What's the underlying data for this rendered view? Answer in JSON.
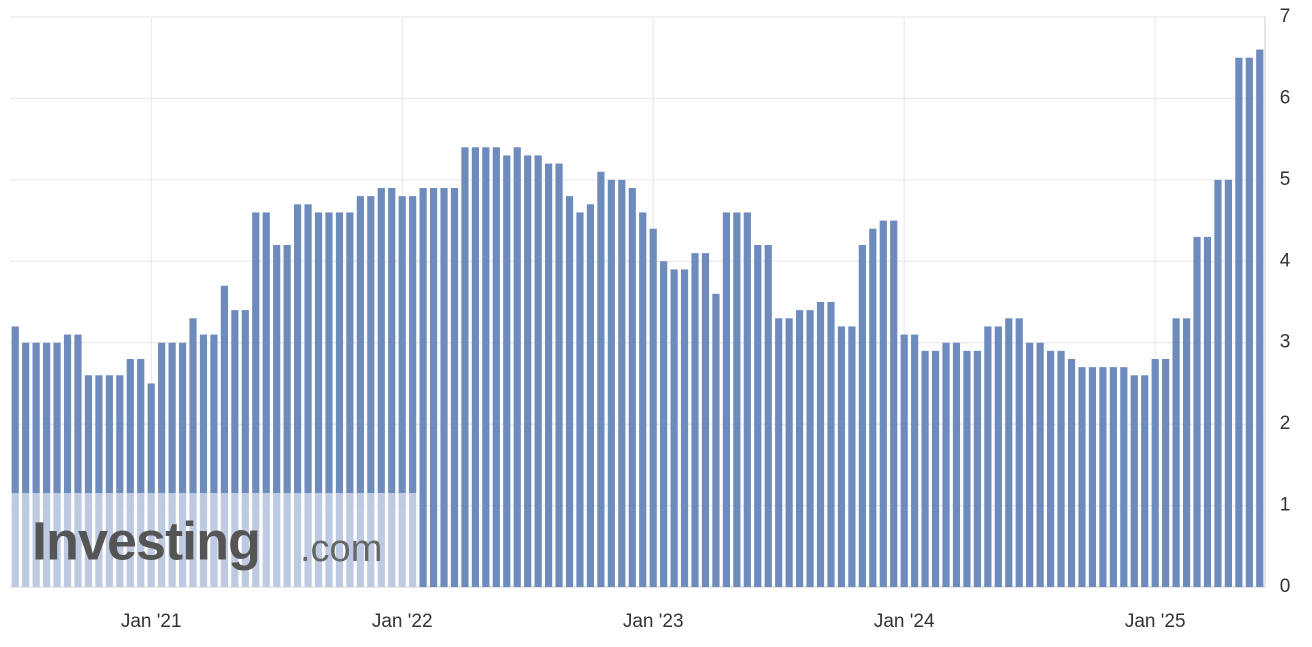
{
  "chart_data": {
    "type": "bar",
    "categories": [
      null,
      null,
      null,
      null,
      null,
      null,
      null,
      null,
      null,
      null,
      null,
      null,
      null,
      "Jan '21",
      null,
      null,
      null,
      null,
      null,
      null,
      null,
      null,
      null,
      null,
      null,
      null,
      null,
      null,
      null,
      null,
      null,
      null,
      null,
      null,
      null,
      null,
      null,
      "Jan '22",
      null,
      null,
      null,
      null,
      null,
      null,
      null,
      null,
      null,
      null,
      null,
      null,
      null,
      null,
      null,
      null,
      null,
      null,
      null,
      null,
      null,
      null,
      null,
      "Jan '23",
      null,
      null,
      null,
      null,
      null,
      null,
      null,
      null,
      null,
      null,
      null,
      null,
      null,
      null,
      null,
      null,
      null,
      null,
      null,
      null,
      null,
      null,
      null,
      "Jan '24",
      null,
      null,
      null,
      null,
      null,
      null,
      null,
      null,
      null,
      null,
      null,
      null,
      null,
      null,
      null,
      null,
      null,
      null,
      null,
      null,
      null,
      null,
      null,
      "Jan '25",
      null,
      null,
      null,
      null,
      null,
      null,
      null,
      null,
      null,
      null
    ],
    "values": [
      3.2,
      3.0,
      3.0,
      3.0,
      3.0,
      3.1,
      3.1,
      2.6,
      2.6,
      2.6,
      2.6,
      2.8,
      2.8,
      2.5,
      3.0,
      3.0,
      3.0,
      3.3,
      3.1,
      3.1,
      3.7,
      3.4,
      3.4,
      4.6,
      4.6,
      4.2,
      4.2,
      4.7,
      4.7,
      4.6,
      4.6,
      4.6,
      4.6,
      4.8,
      4.8,
      4.9,
      4.9,
      4.8,
      4.8,
      4.9,
      4.9,
      4.9,
      4.9,
      5.4,
      5.4,
      5.4,
      5.4,
      5.3,
      5.4,
      5.3,
      5.3,
      5.2,
      5.2,
      4.8,
      4.6,
      4.7,
      5.1,
      5.0,
      5.0,
      4.9,
      4.6,
      4.4,
      4.0,
      3.9,
      3.9,
      4.1,
      4.1,
      3.6,
      4.6,
      4.6,
      4.6,
      4.2,
      4.2,
      3.3,
      3.3,
      3.4,
      3.4,
      3.5,
      3.5,
      3.2,
      3.2,
      4.2,
      4.4,
      4.5,
      4.5,
      3.1,
      3.1,
      2.9,
      2.9,
      3.0,
      3.0,
      2.9,
      2.9,
      3.2,
      3.2,
      3.3,
      3.3,
      3.0,
      3.0,
      2.9,
      2.9,
      2.8,
      2.7,
      2.7,
      2.7,
      2.7,
      2.7,
      2.6,
      2.6,
      2.8,
      2.8,
      3.3,
      3.3,
      4.3,
      4.3,
      5.0,
      5.0,
      6.5,
      6.5,
      6.6
    ],
    "color": "#6d8bbd",
    "ylim": [
      0,
      7
    ],
    "yticks": [
      0,
      1,
      2,
      3,
      4,
      5,
      6,
      7
    ],
    "grid": true,
    "watermark": [
      "Investing",
      ".com"
    ]
  }
}
